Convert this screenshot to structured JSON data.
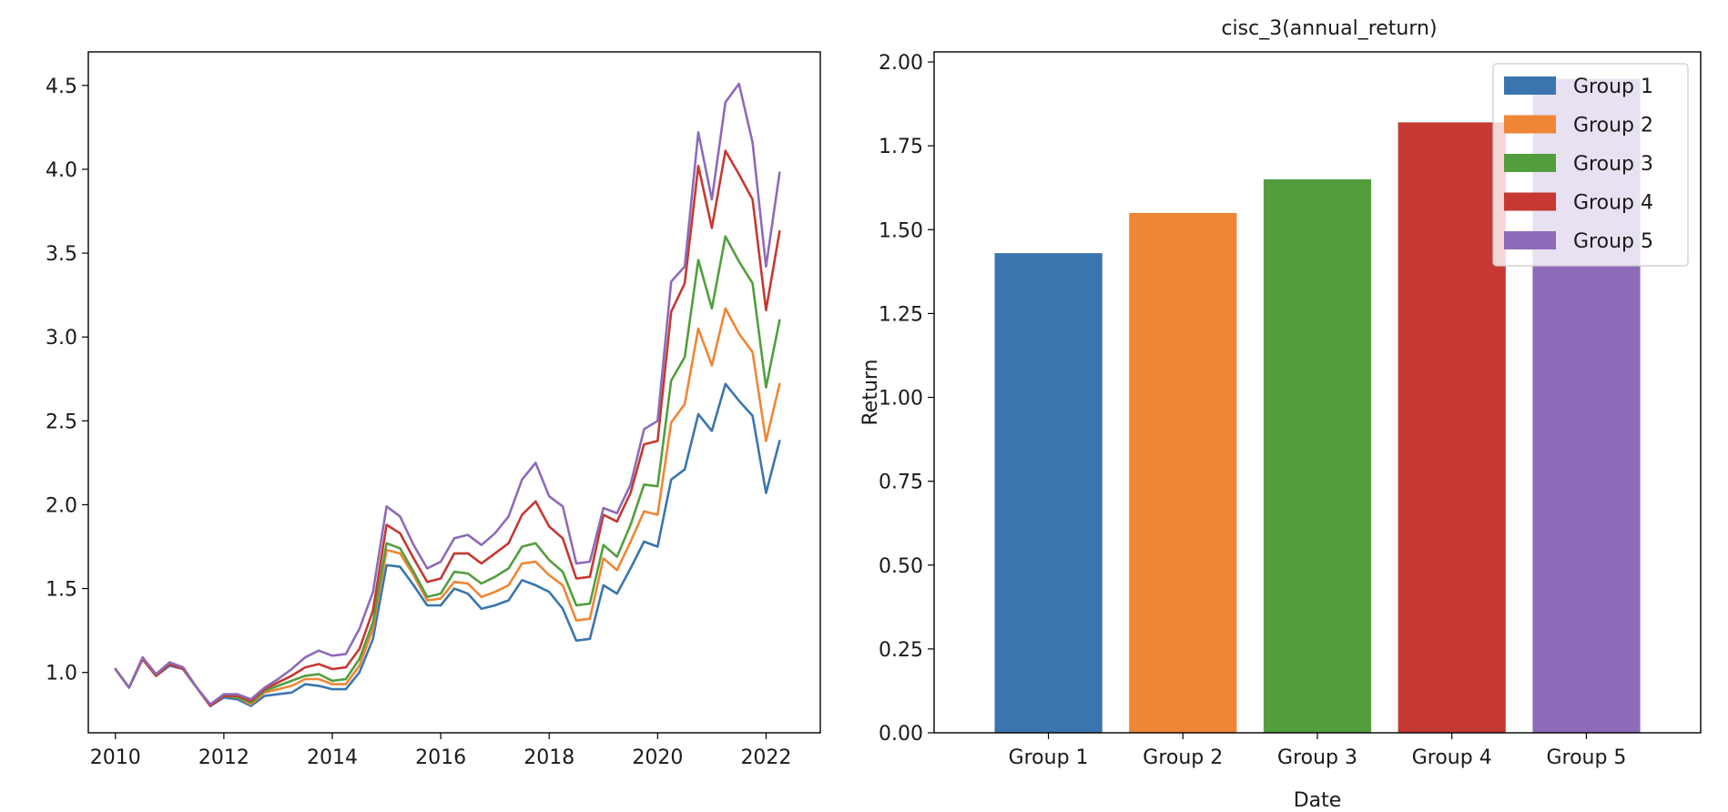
{
  "chart_data": [
    {
      "type": "line",
      "title": "",
      "xlabel": "",
      "ylabel": "",
      "xlim": [
        2009.5,
        2023.0
      ],
      "ylim": [
        0.64,
        4.7
      ],
      "xticks": [
        "2010",
        "2012",
        "2014",
        "2016",
        "2018",
        "2020",
        "2022"
      ],
      "yticks": [
        "1.0",
        "1.5",
        "2.0",
        "2.5",
        "3.0",
        "3.5",
        "4.0",
        "4.5"
      ],
      "grid": false,
      "x": [
        2010.0,
        2010.25,
        2010.5,
        2010.75,
        2011.0,
        2011.25,
        2011.5,
        2011.75,
        2012.0,
        2012.25,
        2012.5,
        2012.75,
        2013.0,
        2013.25,
        2013.5,
        2013.75,
        2014.0,
        2014.25,
        2014.5,
        2014.75,
        2015.0,
        2015.25,
        2015.5,
        2015.75,
        2016.0,
        2016.25,
        2016.5,
        2016.75,
        2017.0,
        2017.25,
        2017.5,
        2017.75,
        2018.0,
        2018.25,
        2018.5,
        2018.75,
        2019.0,
        2019.25,
        2019.5,
        2019.75,
        2020.0,
        2020.25,
        2020.5,
        2020.75,
        2021.0,
        2021.25,
        2021.5,
        2021.75,
        2022.0,
        2022.25
      ],
      "series": [
        {
          "name": "Group 1",
          "color": "#3b75af",
          "values": [
            1.02,
            0.91,
            1.08,
            0.98,
            1.04,
            1.02,
            0.91,
            0.8,
            0.85,
            0.84,
            0.8,
            0.86,
            0.87,
            0.88,
            0.93,
            0.92,
            0.9,
            0.9,
            1.0,
            1.2,
            1.64,
            1.63,
            1.52,
            1.4,
            1.4,
            1.5,
            1.47,
            1.38,
            1.4,
            1.43,
            1.55,
            1.52,
            1.48,
            1.38,
            1.19,
            1.2,
            1.52,
            1.47,
            1.62,
            1.78,
            1.75,
            2.15,
            2.21,
            2.54,
            2.44,
            2.72,
            2.62,
            2.53,
            2.07,
            2.38
          ]
        },
        {
          "name": "Group 2",
          "color": "#ef8636",
          "values": [
            1.02,
            0.91,
            1.08,
            0.98,
            1.05,
            1.02,
            0.91,
            0.8,
            0.86,
            0.85,
            0.81,
            0.88,
            0.9,
            0.92,
            0.96,
            0.96,
            0.93,
            0.93,
            1.04,
            1.26,
            1.73,
            1.71,
            1.58,
            1.43,
            1.44,
            1.54,
            1.53,
            1.45,
            1.48,
            1.52,
            1.65,
            1.66,
            1.58,
            1.52,
            1.31,
            1.32,
            1.68,
            1.61,
            1.78,
            1.96,
            1.94,
            2.49,
            2.6,
            3.05,
            2.83,
            3.17,
            3.02,
            2.91,
            2.38,
            2.72
          ]
        },
        {
          "name": "Group 3",
          "color": "#529e3e",
          "values": [
            1.02,
            0.91,
            1.08,
            0.98,
            1.05,
            1.02,
            0.91,
            0.8,
            0.86,
            0.85,
            0.82,
            0.89,
            0.92,
            0.95,
            0.98,
            0.99,
            0.95,
            0.96,
            1.08,
            1.3,
            1.77,
            1.74,
            1.6,
            1.45,
            1.47,
            1.6,
            1.59,
            1.53,
            1.57,
            1.62,
            1.75,
            1.77,
            1.67,
            1.6,
            1.4,
            1.41,
            1.76,
            1.69,
            1.88,
            2.12,
            2.11,
            2.74,
            2.88,
            3.46,
            3.17,
            3.6,
            3.45,
            3.32,
            2.7,
            3.1
          ]
        },
        {
          "name": "Group 4",
          "color": "#c53932",
          "values": [
            1.02,
            0.91,
            1.08,
            0.98,
            1.05,
            1.02,
            0.91,
            0.8,
            0.86,
            0.86,
            0.83,
            0.9,
            0.94,
            0.98,
            1.03,
            1.05,
            1.02,
            1.03,
            1.14,
            1.37,
            1.88,
            1.83,
            1.68,
            1.54,
            1.56,
            1.71,
            1.71,
            1.65,
            1.71,
            1.77,
            1.94,
            2.02,
            1.87,
            1.8,
            1.56,
            1.57,
            1.94,
            1.9,
            2.07,
            2.36,
            2.38,
            3.15,
            3.32,
            4.02,
            3.65,
            4.11,
            3.97,
            3.82,
            3.16,
            3.63
          ]
        },
        {
          "name": "Group 5",
          "color": "#8d6bb8",
          "values": [
            1.02,
            0.91,
            1.09,
            0.99,
            1.06,
            1.03,
            0.91,
            0.81,
            0.87,
            0.87,
            0.84,
            0.91,
            0.96,
            1.02,
            1.09,
            1.13,
            1.1,
            1.11,
            1.26,
            1.48,
            1.99,
            1.93,
            1.76,
            1.62,
            1.66,
            1.8,
            1.82,
            1.76,
            1.83,
            1.93,
            2.15,
            2.25,
            2.05,
            1.99,
            1.65,
            1.66,
            1.98,
            1.95,
            2.12,
            2.45,
            2.5,
            3.33,
            3.42,
            4.22,
            3.82,
            4.4,
            4.51,
            4.16,
            3.42,
            3.98
          ]
        }
      ]
    },
    {
      "type": "bar",
      "title": "cisc_3(annual_return)",
      "xlabel": "Date",
      "ylabel": "Return",
      "ylim": [
        0,
        2.03
      ],
      "yticks": [
        "0.00",
        "0.25",
        "0.50",
        "0.75",
        "1.00",
        "1.25",
        "1.50",
        "1.75",
        "2.00"
      ],
      "grid": false,
      "legend_position": "top-right",
      "categories": [
        "Group 1",
        "Group 2",
        "Group 3",
        "Group 4",
        "Group 5"
      ],
      "values": [
        1.43,
        1.55,
        1.65,
        1.82,
        1.95
      ],
      "colors": [
        "#3b75af",
        "#ef8636",
        "#529e3e",
        "#c53932",
        "#8d6bb8"
      ],
      "legend": [
        "Group 1",
        "Group 2",
        "Group 3",
        "Group 4",
        "Group 5"
      ]
    }
  ]
}
